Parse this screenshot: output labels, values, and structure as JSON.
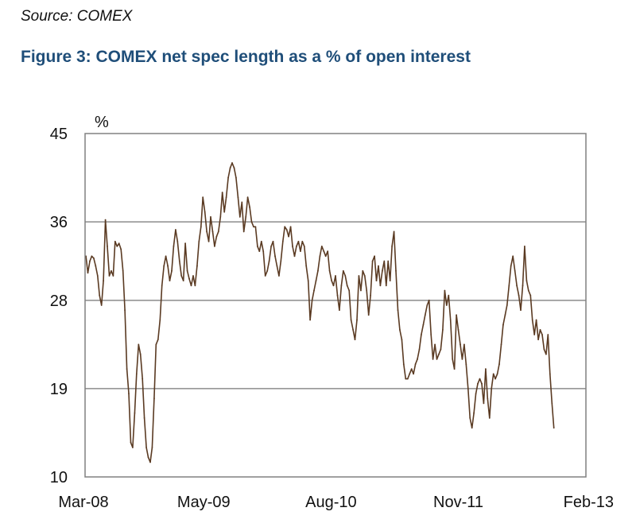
{
  "source": "Source: COMEX",
  "title": "Figure 3: COMEX net spec length as a % of open interest",
  "chart_data": {
    "type": "line",
    "unit_label": "%",
    "ylim": [
      10,
      45
    ],
    "yticks": [
      10,
      19,
      28,
      36,
      45
    ],
    "xlim": [
      "2008-03",
      "2013-02"
    ],
    "xticks": [
      {
        "date": "2008-03",
        "label": "Mar-08"
      },
      {
        "date": "2009-05",
        "label": "May-09"
      },
      {
        "date": "2010-08",
        "label": "Aug-10"
      },
      {
        "date": "2011-11",
        "label": "Nov-11"
      },
      {
        "date": "2013-02",
        "label": "Feb-13"
      }
    ],
    "grid": "horizontal",
    "line_color": "#5a3a22",
    "series": [
      {
        "points": [
          [
            "2008-03-04",
            32.5
          ],
          [
            "2008-03-11",
            30.8
          ],
          [
            "2008-03-18",
            32.0
          ],
          [
            "2008-03-25",
            32.5
          ],
          [
            "2008-04-01",
            32.3
          ],
          [
            "2008-04-08",
            31.5
          ],
          [
            "2008-04-15",
            30.5
          ],
          [
            "2008-04-22",
            28.5
          ],
          [
            "2008-04-29",
            27.5
          ],
          [
            "2008-05-06",
            30.0
          ],
          [
            "2008-05-13",
            36.2
          ],
          [
            "2008-05-20",
            33.5
          ],
          [
            "2008-05-27",
            30.5
          ],
          [
            "2008-06-03",
            31.0
          ],
          [
            "2008-06-10",
            30.5
          ],
          [
            "2008-06-17",
            34.0
          ],
          [
            "2008-06-24",
            33.5
          ],
          [
            "2008-07-01",
            33.8
          ],
          [
            "2008-07-08",
            33.2
          ],
          [
            "2008-07-15",
            31.0
          ],
          [
            "2008-07-22",
            27.0
          ],
          [
            "2008-07-29",
            21.0
          ],
          [
            "2008-08-05",
            18.5
          ],
          [
            "2008-08-12",
            13.5
          ],
          [
            "2008-08-19",
            13.0
          ],
          [
            "2008-08-26",
            16.5
          ],
          [
            "2008-09-02",
            20.5
          ],
          [
            "2008-09-09",
            23.5
          ],
          [
            "2008-09-16",
            22.5
          ],
          [
            "2008-09-23",
            20.0
          ],
          [
            "2008-09-30",
            16.0
          ],
          [
            "2008-10-07",
            13.0
          ],
          [
            "2008-10-14",
            12.0
          ],
          [
            "2008-10-21",
            11.5
          ],
          [
            "2008-10-28",
            13.0
          ],
          [
            "2008-11-04",
            18.0
          ],
          [
            "2008-11-11",
            23.5
          ],
          [
            "2008-11-18",
            24.0
          ],
          [
            "2008-11-25",
            26.0
          ],
          [
            "2008-12-02",
            29.5
          ],
          [
            "2008-12-09",
            31.5
          ],
          [
            "2008-12-16",
            32.5
          ],
          [
            "2008-12-23",
            31.5
          ],
          [
            "2008-12-30",
            30.0
          ],
          [
            "2009-01-06",
            31.0
          ],
          [
            "2009-01-13",
            33.5
          ],
          [
            "2009-01-20",
            35.2
          ],
          [
            "2009-01-27",
            34.0
          ],
          [
            "2009-02-03",
            32.0
          ],
          [
            "2009-02-10",
            30.5
          ],
          [
            "2009-02-17",
            30.0
          ],
          [
            "2009-02-24",
            33.8
          ],
          [
            "2009-03-03",
            31.0
          ],
          [
            "2009-03-10",
            30.2
          ],
          [
            "2009-03-17",
            29.5
          ],
          [
            "2009-03-24",
            30.5
          ],
          [
            "2009-03-31",
            29.5
          ],
          [
            "2009-04-07",
            31.5
          ],
          [
            "2009-04-14",
            34.0
          ],
          [
            "2009-04-21",
            35.5
          ],
          [
            "2009-04-28",
            38.5
          ],
          [
            "2009-05-05",
            37.0
          ],
          [
            "2009-05-12",
            35.0
          ],
          [
            "2009-05-19",
            34.0
          ],
          [
            "2009-05-26",
            36.5
          ],
          [
            "2009-06-02",
            35.0
          ],
          [
            "2009-06-09",
            33.5
          ],
          [
            "2009-06-16",
            34.5
          ],
          [
            "2009-06-23",
            35.0
          ],
          [
            "2009-06-30",
            36.5
          ],
          [
            "2009-07-07",
            39.0
          ],
          [
            "2009-07-14",
            37.0
          ],
          [
            "2009-07-21",
            38.5
          ],
          [
            "2009-07-28",
            40.5
          ],
          [
            "2009-08-04",
            41.5
          ],
          [
            "2009-08-11",
            42.0
          ],
          [
            "2009-08-18",
            41.5
          ],
          [
            "2009-08-25",
            40.5
          ],
          [
            "2009-09-01",
            38.5
          ],
          [
            "2009-09-08",
            36.5
          ],
          [
            "2009-09-15",
            38.0
          ],
          [
            "2009-09-22",
            35.0
          ],
          [
            "2009-09-29",
            36.5
          ],
          [
            "2009-10-06",
            38.5
          ],
          [
            "2009-10-13",
            37.5
          ],
          [
            "2009-10-20",
            36.0
          ],
          [
            "2009-10-27",
            35.5
          ],
          [
            "2009-11-03",
            35.5
          ],
          [
            "2009-11-10",
            33.5
          ],
          [
            "2009-11-17",
            33.0
          ],
          [
            "2009-11-24",
            34.0
          ],
          [
            "2009-12-01",
            33.0
          ],
          [
            "2009-12-08",
            30.5
          ],
          [
            "2009-12-15",
            31.0
          ],
          [
            "2009-12-22",
            32.0
          ],
          [
            "2009-12-29",
            33.5
          ],
          [
            "2010-01-05",
            34.0
          ],
          [
            "2010-01-12",
            32.5
          ],
          [
            "2010-01-19",
            31.5
          ],
          [
            "2010-01-26",
            30.5
          ],
          [
            "2010-02-02",
            32.0
          ],
          [
            "2010-02-09",
            34.0
          ],
          [
            "2010-02-16",
            35.5
          ],
          [
            "2010-02-23",
            35.2
          ],
          [
            "2010-03-02",
            34.5
          ],
          [
            "2010-03-09",
            35.5
          ],
          [
            "2010-03-16",
            33.5
          ],
          [
            "2010-03-23",
            32.5
          ],
          [
            "2010-03-30",
            33.5
          ],
          [
            "2010-04-06",
            34.0
          ],
          [
            "2010-04-13",
            33.0
          ],
          [
            "2010-04-20",
            34.0
          ],
          [
            "2010-04-27",
            33.5
          ],
          [
            "2010-05-04",
            31.5
          ],
          [
            "2010-05-11",
            30.0
          ],
          [
            "2010-05-18",
            26.0
          ],
          [
            "2010-05-25",
            28.0
          ],
          [
            "2010-06-01",
            29.0
          ],
          [
            "2010-06-08",
            30.0
          ],
          [
            "2010-06-15",
            31.0
          ],
          [
            "2010-06-22",
            32.5
          ],
          [
            "2010-06-29",
            33.5
          ],
          [
            "2010-07-06",
            33.0
          ],
          [
            "2010-07-13",
            32.5
          ],
          [
            "2010-07-20",
            33.0
          ],
          [
            "2010-07-27",
            31.0
          ],
          [
            "2010-08-03",
            30.0
          ],
          [
            "2010-08-10",
            29.5
          ],
          [
            "2010-08-17",
            30.5
          ],
          [
            "2010-08-24",
            28.5
          ],
          [
            "2010-08-31",
            27.0
          ],
          [
            "2010-09-07",
            29.5
          ],
          [
            "2010-09-14",
            31.0
          ],
          [
            "2010-09-21",
            30.5
          ],
          [
            "2010-09-28",
            29.5
          ],
          [
            "2010-10-05",
            29.0
          ],
          [
            "2010-10-12",
            26.0
          ],
          [
            "2010-10-19",
            25.0
          ],
          [
            "2010-10-26",
            24.0
          ],
          [
            "2010-11-02",
            26.0
          ],
          [
            "2010-11-09",
            30.5
          ],
          [
            "2010-11-16",
            29.0
          ],
          [
            "2010-11-23",
            31.0
          ],
          [
            "2010-11-30",
            30.5
          ],
          [
            "2010-12-07",
            29.0
          ],
          [
            "2010-12-14",
            26.5
          ],
          [
            "2010-12-21",
            28.5
          ],
          [
            "2010-12-28",
            32.0
          ],
          [
            "2011-01-04",
            32.5
          ],
          [
            "2011-01-11",
            30.0
          ],
          [
            "2011-01-18",
            31.5
          ],
          [
            "2011-01-25",
            29.5
          ],
          [
            "2011-02-01",
            31.0
          ],
          [
            "2011-02-08",
            32.0
          ],
          [
            "2011-02-15",
            29.5
          ],
          [
            "2011-02-22",
            32.0
          ],
          [
            "2011-03-01",
            30.0
          ],
          [
            "2011-03-08",
            33.5
          ],
          [
            "2011-03-15",
            35.0
          ],
          [
            "2011-03-22",
            31.0
          ],
          [
            "2011-03-29",
            27.0
          ],
          [
            "2011-04-05",
            25.0
          ],
          [
            "2011-04-12",
            24.0
          ],
          [
            "2011-04-19",
            21.5
          ],
          [
            "2011-04-26",
            20.0
          ],
          [
            "2011-05-03",
            20.0
          ],
          [
            "2011-05-10",
            20.5
          ],
          [
            "2011-05-17",
            21.0
          ],
          [
            "2011-05-24",
            20.5
          ],
          [
            "2011-05-31",
            21.5
          ],
          [
            "2011-06-07",
            22.0
          ],
          [
            "2011-06-14",
            23.0
          ],
          [
            "2011-06-21",
            24.5
          ],
          [
            "2011-06-28",
            25.5
          ],
          [
            "2011-07-05",
            26.5
          ],
          [
            "2011-07-12",
            27.5
          ],
          [
            "2011-07-19",
            28.0
          ],
          [
            "2011-07-26",
            24.5
          ],
          [
            "2011-08-02",
            22.0
          ],
          [
            "2011-08-09",
            23.5
          ],
          [
            "2011-08-16",
            22.0
          ],
          [
            "2011-08-23",
            22.5
          ],
          [
            "2011-08-30",
            23.0
          ],
          [
            "2011-09-06",
            25.0
          ],
          [
            "2011-09-13",
            29.0
          ],
          [
            "2011-09-20",
            27.5
          ],
          [
            "2011-09-27",
            28.5
          ],
          [
            "2011-10-04",
            26.0
          ],
          [
            "2011-10-11",
            22.0
          ],
          [
            "2011-10-18",
            21.0
          ],
          [
            "2011-10-25",
            26.5
          ],
          [
            "2011-11-01",
            25.0
          ],
          [
            "2011-11-08",
            23.5
          ],
          [
            "2011-11-15",
            22.0
          ],
          [
            "2011-11-22",
            23.5
          ],
          [
            "2011-11-29",
            21.5
          ],
          [
            "2011-12-06",
            19.0
          ],
          [
            "2011-12-13",
            16.0
          ],
          [
            "2011-12-20",
            15.0
          ],
          [
            "2011-12-27",
            16.5
          ],
          [
            "2012-01-03",
            18.5
          ],
          [
            "2012-01-10",
            19.5
          ],
          [
            "2012-01-17",
            20.0
          ],
          [
            "2012-01-24",
            19.5
          ],
          [
            "2012-01-31",
            17.5
          ],
          [
            "2012-02-07",
            21.0
          ],
          [
            "2012-02-14",
            18.0
          ],
          [
            "2012-02-21",
            16.0
          ],
          [
            "2012-02-28",
            19.0
          ],
          [
            "2012-03-06",
            20.5
          ],
          [
            "2012-03-13",
            20.0
          ],
          [
            "2012-03-20",
            20.5
          ],
          [
            "2012-03-27",
            21.5
          ],
          [
            "2012-04-03",
            23.5
          ],
          [
            "2012-04-10",
            25.5
          ],
          [
            "2012-04-17",
            26.5
          ],
          [
            "2012-04-24",
            27.5
          ],
          [
            "2012-05-01",
            29.5
          ],
          [
            "2012-05-08",
            31.5
          ],
          [
            "2012-05-15",
            32.5
          ],
          [
            "2012-05-22",
            31.0
          ],
          [
            "2012-05-29",
            29.5
          ],
          [
            "2012-06-05",
            28.5
          ],
          [
            "2012-06-12",
            27.0
          ],
          [
            "2012-06-19",
            29.5
          ],
          [
            "2012-06-26",
            33.5
          ],
          [
            "2012-07-03",
            30.0
          ],
          [
            "2012-07-10",
            29.0
          ],
          [
            "2012-07-17",
            28.5
          ],
          [
            "2012-07-24",
            26.0
          ],
          [
            "2012-07-31",
            24.5
          ],
          [
            "2012-08-07",
            26.0
          ],
          [
            "2012-08-14",
            24.0
          ],
          [
            "2012-08-21",
            25.0
          ],
          [
            "2012-08-28",
            24.5
          ],
          [
            "2012-09-04",
            23.0
          ],
          [
            "2012-09-11",
            22.5
          ],
          [
            "2012-09-18",
            24.5
          ],
          [
            "2012-09-25",
            20.5
          ],
          [
            "2012-10-02",
            17.5
          ],
          [
            "2012-10-09",
            15.0
          ]
        ]
      }
    ]
  }
}
